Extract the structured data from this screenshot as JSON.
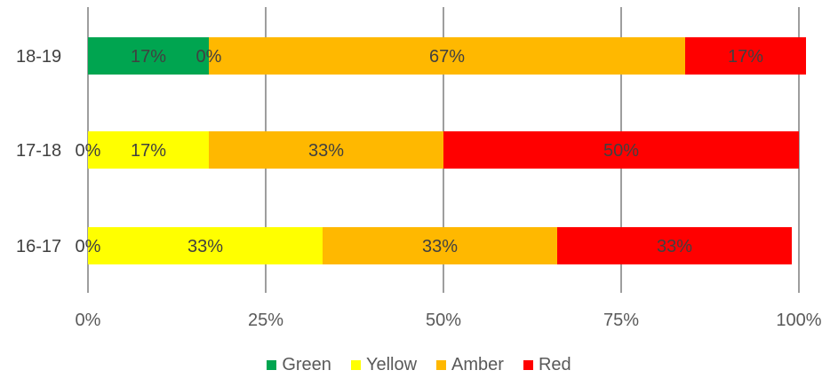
{
  "chart_data": {
    "type": "bar",
    "orientation": "horizontal",
    "stacked": "percent",
    "categories": [
      "18-19",
      "17-18",
      "16-17"
    ],
    "series": [
      {
        "name": "Green",
        "color": "#00A550",
        "values": [
          17,
          0,
          0
        ],
        "labels": [
          "17%",
          "0%",
          "0%"
        ]
      },
      {
        "name": "Yellow",
        "color": "#FFFF00",
        "values": [
          0,
          17,
          33
        ],
        "labels": [
          "0%",
          "17%",
          "33%"
        ]
      },
      {
        "name": "Amber",
        "color": "#FFB800",
        "values": [
          67,
          33,
          33
        ],
        "labels": [
          "67%",
          "33%",
          "33%"
        ]
      },
      {
        "name": "Red",
        "color": "#FF0000",
        "values": [
          17,
          50,
          33
        ],
        "labels": [
          "17%",
          "50%",
          "33%"
        ]
      }
    ],
    "xlim": [
      0,
      100
    ],
    "xticks": [
      "0%",
      "25%",
      "50%",
      "75%",
      "100%"
    ],
    "grid": true,
    "legend_position": "bottom"
  }
}
